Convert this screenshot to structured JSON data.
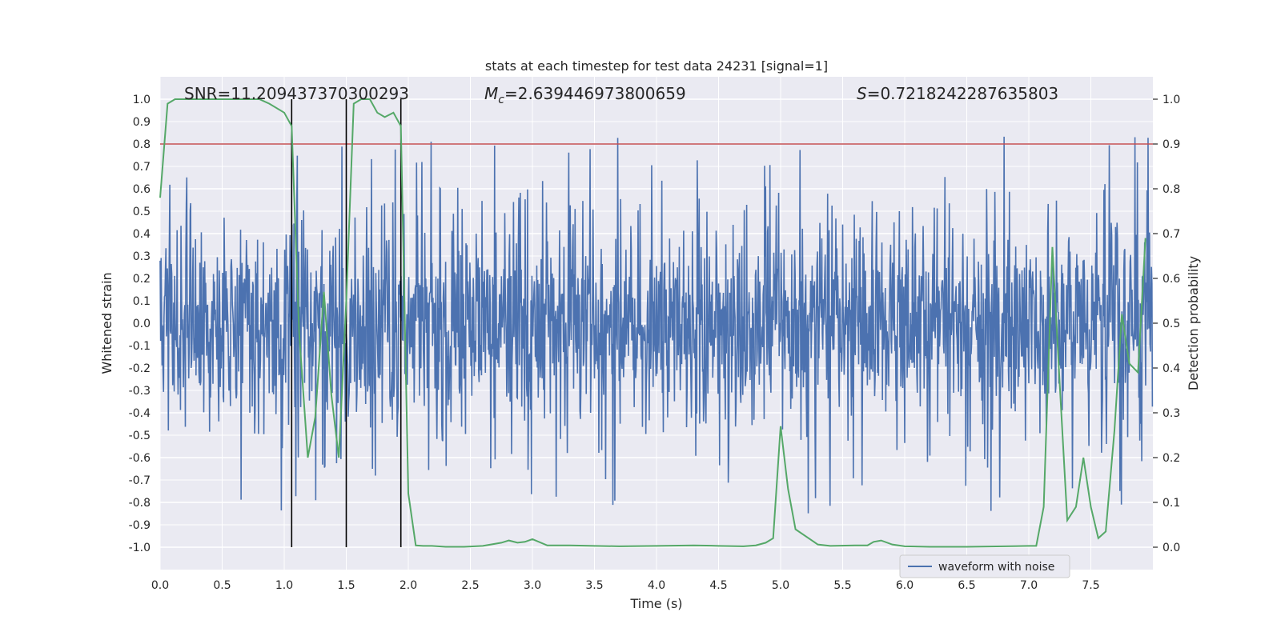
{
  "chart_data": {
    "type": "line",
    "title": "stats at each timestep for test data 24231 [signal=1]",
    "xlabel": "Time (s)",
    "ylabel": "Whitened strain",
    "y2label": "Detection probability",
    "xlim": [
      0.0,
      8.0
    ],
    "ylim": [
      -1.1,
      1.1
    ],
    "y2lim": [
      -0.05,
      1.05
    ],
    "xticks": [
      0.0,
      0.5,
      1.0,
      1.5,
      2.0,
      2.5,
      3.0,
      3.5,
      4.0,
      4.5,
      5.0,
      5.5,
      6.0,
      6.5,
      7.0,
      7.5
    ],
    "xtick_labels": [
      "0.0",
      "0.5",
      "1.0",
      "1.5",
      "2.0",
      "2.5",
      "3.0",
      "3.5",
      "4.0",
      "4.5",
      "5.0",
      "5.5",
      "6.0",
      "6.5",
      "7.0",
      "7.5"
    ],
    "yticks": [
      1.0,
      0.9,
      0.8,
      0.7,
      0.6,
      0.5,
      0.4,
      0.3,
      0.2,
      0.1,
      0.0,
      -0.1,
      -0.2,
      -0.3,
      -0.4,
      -0.5,
      -0.6,
      -0.7,
      -0.8,
      -0.9,
      -1.0
    ],
    "ytick_labels": [
      "1.0",
      "0.9",
      "0.8",
      "0.7",
      "0.6",
      "0.5",
      "0.4",
      "0.3",
      "0.2",
      "0.1",
      "0.0",
      "-0.1",
      "-0.2",
      "-0.3",
      "-0.4",
      "-0.5",
      "-0.6",
      "-0.7",
      "-0.8",
      "-0.9",
      "-1.0"
    ],
    "y2ticks": [
      1.0,
      0.9,
      0.8,
      0.7,
      0.6,
      0.5,
      0.4,
      0.3,
      0.2,
      0.1,
      0.0
    ],
    "y2tick_labels": [
      "1.0",
      "0.9",
      "0.8",
      "0.7",
      "0.6",
      "0.5",
      "0.4",
      "0.3",
      "0.2",
      "0.1",
      "0.0"
    ],
    "grid": true,
    "legend_position": "lower-right",
    "annotations": {
      "snr": "SNR=11.209437370300293",
      "mc_symbol": "M",
      "mc_subscript": "c",
      "mc_value": "=2.639446973800659",
      "s_symbol": "S",
      "s_value": "=0.7218242287635803"
    },
    "threshold": 0.9,
    "vertical_lines_x": [
      1.06,
      1.5,
      1.94
    ],
    "series": [
      {
        "name": "waveform with noise",
        "axis": "left",
        "color": "#4c72b0",
        "samples": 2048,
        "duration_s": 8.0,
        "envelope": "noise roughly within ±0.4 with frequent spikes to ±0.85"
      },
      {
        "axis": "right",
        "color": "#55a868",
        "x": [
          0.0,
          0.06,
          0.12,
          0.2,
          0.4,
          0.6,
          0.8,
          0.88,
          1.0,
          1.06,
          1.12,
          1.19,
          1.25,
          1.32,
          1.38,
          1.44,
          1.5,
          1.56,
          1.62,
          1.69,
          1.75,
          1.81,
          1.88,
          1.94,
          2.0,
          2.06,
          2.12,
          2.19,
          2.3,
          2.45,
          2.6,
          2.75,
          2.81,
          2.88,
          2.94,
          3.0,
          3.12,
          3.3,
          3.5,
          3.7,
          4.0,
          4.3,
          4.5,
          4.7,
          4.8,
          4.88,
          4.94,
          5.0,
          5.06,
          5.12,
          5.3,
          5.4,
          5.6,
          5.7,
          5.75,
          5.81,
          5.9,
          6.0,
          6.2,
          6.5,
          6.8,
          7.0,
          7.06,
          7.12,
          7.19,
          7.25,
          7.31,
          7.38,
          7.44,
          7.5,
          7.56,
          7.62,
          7.69,
          7.75,
          7.81,
          7.88,
          7.94
        ],
        "y": [
          0.78,
          0.99,
          1.0,
          1.0,
          1.0,
          1.0,
          1.0,
          0.99,
          0.97,
          0.94,
          0.48,
          0.2,
          0.29,
          0.57,
          0.34,
          0.2,
          0.55,
          0.99,
          1.0,
          1.0,
          0.97,
          0.96,
          0.97,
          0.94,
          0.12,
          0.004,
          0.003,
          0.003,
          0.001,
          0.001,
          0.003,
          0.01,
          0.015,
          0.01,
          0.012,
          0.018,
          0.004,
          0.004,
          0.003,
          0.002,
          0.003,
          0.004,
          0.003,
          0.002,
          0.004,
          0.01,
          0.02,
          0.27,
          0.13,
          0.04,
          0.006,
          0.003,
          0.004,
          0.004,
          0.012,
          0.015,
          0.006,
          0.002,
          0.001,
          0.001,
          0.002,
          0.003,
          0.003,
          0.09,
          0.67,
          0.36,
          0.06,
          0.09,
          0.2,
          0.09,
          0.02,
          0.035,
          0.26,
          0.52,
          0.41,
          0.39,
          0.69
        ]
      }
    ]
  }
}
